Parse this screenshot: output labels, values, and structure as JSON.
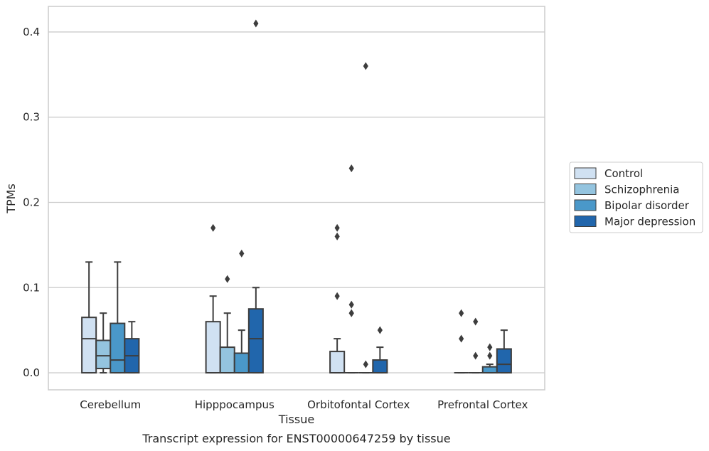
{
  "caption": "Transcript expression for ENST00000647259 by tissue",
  "chart_data": {
    "type": "box",
    "xlabel": "Tissue",
    "ylabel": "TPMs",
    "ylim": [
      -0.02,
      0.43
    ],
    "yticks": [
      0.0,
      0.1,
      0.2,
      0.3,
      0.4
    ],
    "ytick_labels": [
      "0.0",
      "0.1",
      "0.2",
      "0.3",
      "0.4"
    ],
    "grid": "horizontal",
    "legend_position": "right",
    "categories": [
      "Cerebellum",
      "Hipppocampus",
      "Orbitofontal Cortex",
      "Prefrontal Cortex"
    ],
    "series": [
      {
        "name": "Control",
        "color": "#d0e1f2",
        "boxes": [
          {
            "whislo": 0.0,
            "q1": 0.0,
            "med": 0.04,
            "q3": 0.065,
            "whishi": 0.13,
            "fliers": []
          },
          {
            "whislo": 0.0,
            "q1": 0.0,
            "med": 0.0,
            "q3": 0.06,
            "whishi": 0.09,
            "fliers": [
              0.17
            ]
          },
          {
            "whislo": 0.0,
            "q1": 0.0,
            "med": 0.0,
            "q3": 0.025,
            "whishi": 0.04,
            "fliers": [
              0.09,
              0.16,
              0.17
            ]
          },
          {
            "whislo": 0.0,
            "q1": 0.0,
            "med": 0.0,
            "q3": 0.0,
            "whishi": 0.0,
            "fliers": [
              0.04,
              0.07
            ]
          }
        ]
      },
      {
        "name": "Schizophrenia",
        "color": "#94c4df",
        "boxes": [
          {
            "whislo": 0.0,
            "q1": 0.005,
            "med": 0.02,
            "q3": 0.038,
            "whishi": 0.07,
            "fliers": []
          },
          {
            "whislo": 0.0,
            "q1": 0.0,
            "med": 0.0,
            "q3": 0.03,
            "whishi": 0.07,
            "fliers": [
              0.11
            ]
          },
          {
            "whislo": 0.0,
            "q1": 0.0,
            "med": 0.0,
            "q3": 0.0,
            "whishi": 0.0,
            "fliers": [
              0.07,
              0.07,
              0.08,
              0.24
            ]
          },
          {
            "whislo": 0.0,
            "q1": 0.0,
            "med": 0.0,
            "q3": 0.0,
            "whishi": 0.0,
            "fliers": [
              0.02,
              0.06
            ]
          }
        ]
      },
      {
        "name": "Bipolar disorder",
        "color": "#4a98c9",
        "boxes": [
          {
            "whislo": 0.0,
            "q1": 0.0,
            "med": 0.015,
            "q3": 0.058,
            "whishi": 0.13,
            "fliers": []
          },
          {
            "whislo": 0.0,
            "q1": 0.0,
            "med": 0.0,
            "q3": 0.023,
            "whishi": 0.05,
            "fliers": [
              0.14
            ]
          },
          {
            "whislo": 0.0,
            "q1": 0.0,
            "med": 0.0,
            "q3": 0.0,
            "whishi": 0.0,
            "fliers": [
              0.01,
              0.36
            ]
          },
          {
            "whislo": 0.0,
            "q1": 0.0,
            "med": 0.0,
            "q3": 0.007,
            "whishi": 0.01,
            "fliers": [
              0.02,
              0.03
            ]
          }
        ]
      },
      {
        "name": "Major depression",
        "color": "#2166ac",
        "boxes": [
          {
            "whislo": 0.0,
            "q1": 0.0,
            "med": 0.02,
            "q3": 0.04,
            "whishi": 0.06,
            "fliers": []
          },
          {
            "whislo": 0.0,
            "q1": 0.0,
            "med": 0.04,
            "q3": 0.075,
            "whishi": 0.1,
            "fliers": [
              0.41
            ]
          },
          {
            "whislo": 0.0,
            "q1": 0.0,
            "med": 0.0,
            "q3": 0.015,
            "whishi": 0.03,
            "fliers": [
              0.05
            ]
          },
          {
            "whislo": 0.0,
            "q1": 0.0,
            "med": 0.01,
            "q3": 0.028,
            "whishi": 0.05,
            "fliers": []
          }
        ]
      }
    ]
  }
}
